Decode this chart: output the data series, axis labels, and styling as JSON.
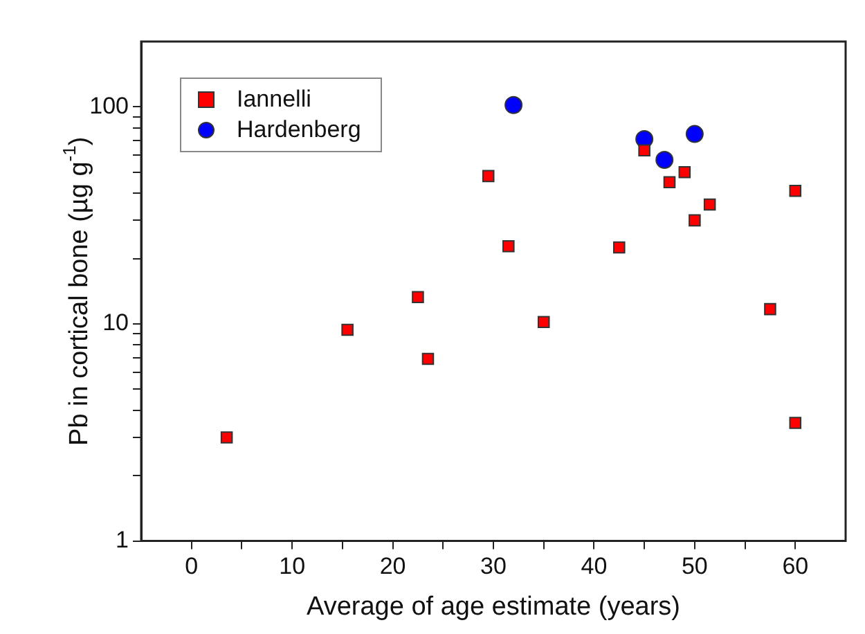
{
  "chart_data": {
    "type": "scatter",
    "xlabel": "Average of age estimate (years)",
    "ylabel": "Pb in cortical bone (µg g$^{-1}$)",
    "xlim": [
      -5,
      65
    ],
    "xticks": [
      0,
      {
        "value": 5,
        "label": null
      },
      10,
      {
        "value": 15,
        "label": null
      },
      20,
      {
        "value": 25,
        "label": null
      },
      30,
      {
        "value": 35,
        "label": null
      },
      40,
      {
        "value": 45,
        "label": null
      },
      50,
      {
        "value": 55,
        "label": null
      },
      60
    ],
    "ylim": [
      1,
      200
    ],
    "log": true,
    "yticks": [
      1,
      {
        "value": 2,
        "label": null
      },
      {
        "value": 3,
        "label": null
      },
      {
        "value": 4,
        "label": null
      },
      {
        "value": 5,
        "label": null
      },
      {
        "value": 6,
        "label": null
      },
      {
        "value": 7,
        "label": null
      },
      {
        "value": 8,
        "label": null
      },
      {
        "value": 9,
        "label": null
      },
      10,
      {
        "value": 20,
        "label": null
      },
      {
        "value": 30,
        "label": null
      },
      {
        "value": 40,
        "label": null
      },
      {
        "value": 50,
        "label": null
      },
      {
        "value": 60,
        "label": null
      },
      {
        "value": 70,
        "label": null
      },
      {
        "value": 80,
        "label": null
      },
      {
        "value": 90,
        "label": null
      },
      100
    ],
    "grid": false,
    "legend": "top left",
    "series": [
      {
        "name": "Iannelli",
        "color": "#ff0000",
        "marker": "square",
        "x": [
          3.5,
          15.5,
          22.5,
          23.5,
          29.5,
          31.5,
          35,
          42.5,
          45,
          47.5,
          49,
          50,
          51.5,
          57.5,
          60,
          60
        ],
        "values": [
          3,
          9.4,
          13.3,
          6.9,
          48,
          22.8,
          10.2,
          22.5,
          63,
          45,
          50,
          30,
          35.5,
          11.7,
          41,
          3.5
        ]
      },
      {
        "name": "Hardenberg",
        "color": "#0000ff",
        "marker": "circle",
        "x": [
          32,
          45,
          47,
          50
        ],
        "values": [
          102,
          71,
          57,
          75
        ]
      }
    ]
  }
}
